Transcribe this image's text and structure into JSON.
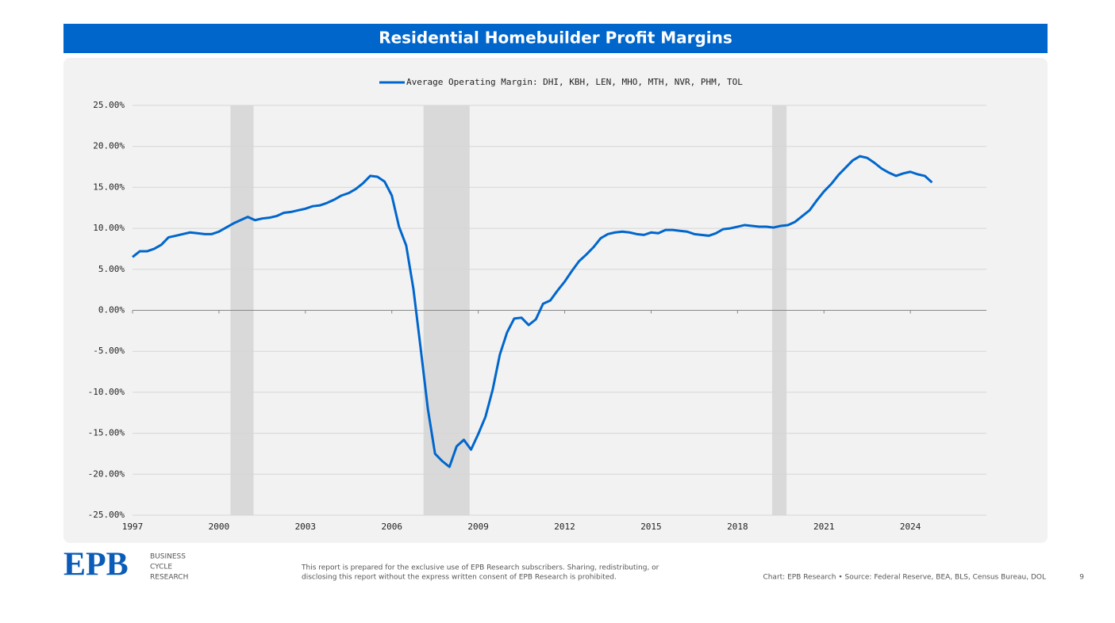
{
  "chart_data": {
    "type": "line",
    "title": "Residential Homebuilder Profit Margins",
    "legend": "top",
    "grid": true,
    "xlim": [
      1997,
      2026.64
    ],
    "ylim": [
      -25,
      25
    ],
    "xticks": [
      1997,
      2000,
      2003,
      2006,
      2009,
      2012,
      2015,
      2018,
      2021,
      2024
    ],
    "yticks": [
      {
        "value": 25,
        "label": "25.00%"
      },
      {
        "value": 20,
        "label": "20.00%"
      },
      {
        "value": 15,
        "label": "15.00%"
      },
      {
        "value": 10,
        "label": "10.00%"
      },
      {
        "value": 5,
        "label": "5.00%"
      },
      {
        "value": 0,
        "label": "0.00%"
      },
      {
        "value": -5,
        "label": "-5.00%"
      },
      {
        "value": -10,
        "label": "-10.00%"
      },
      {
        "value": -15,
        "label": "-15.00%"
      },
      {
        "value": -20,
        "label": "-20.00%"
      },
      {
        "value": -25,
        "label": "-25.00%"
      }
    ],
    "shaded_periods": [
      {
        "start": 2000.4,
        "end": 2001.2
      },
      {
        "start": 2007.1,
        "end": 2008.7
      },
      {
        "start": 2019.2,
        "end": 2019.7
      }
    ],
    "shade_color": "#d9d9d9",
    "x": [
      1997,
      1997.25,
      1997.5,
      1997.75,
      1998,
      1998.25,
      1998.5,
      1998.75,
      1999,
      1999.25,
      1999.5,
      1999.75,
      2000,
      2000.25,
      2000.5,
      2000.75,
      2001,
      2001.25,
      2001.5,
      2001.75,
      2002,
      2002.25,
      2002.5,
      2002.75,
      2003,
      2003.25,
      2003.5,
      2003.75,
      2004,
      2004.25,
      2004.5,
      2004.75,
      2005,
      2005.25,
      2005.5,
      2005.75,
      2006,
      2006.25,
      2006.5,
      2006.75,
      2007,
      2007.25,
      2007.5,
      2007.75,
      2008,
      2008.25,
      2008.5,
      2008.75,
      2009,
      2009.25,
      2009.5,
      2009.75,
      2010,
      2010.25,
      2010.5,
      2010.75,
      2011,
      2011.25,
      2011.5,
      2011.75,
      2012,
      2012.25,
      2012.5,
      2012.75,
      2013,
      2013.25,
      2013.5,
      2013.75,
      2014,
      2014.25,
      2014.5,
      2014.75,
      2015,
      2015.25,
      2015.5,
      2015.75,
      2016,
      2016.25,
      2016.5,
      2016.75,
      2017,
      2017.25,
      2017.5,
      2017.75,
      2018,
      2018.25,
      2018.5,
      2018.75,
      2019,
      2019.25,
      2019.5,
      2019.75,
      2020,
      2020.25,
      2020.5,
      2020.75,
      2021,
      2021.25,
      2021.5,
      2021.75,
      2022,
      2022.25,
      2022.5,
      2022.75,
      2023,
      2023.25,
      2023.5,
      2023.75,
      2024,
      2024.25,
      2024.5,
      2024.75
    ],
    "series": [
      {
        "name": "Average Operating Margin: DHI, KBH, LEN, MHO, MTH, NVR, PHM, TOL",
        "color": "#0066cc",
        "values": [
          6.5,
          7.2,
          7.2,
          7.5,
          8.0,
          8.9,
          9.1,
          9.3,
          9.5,
          9.4,
          9.3,
          9.3,
          9.6,
          10.1,
          10.6,
          11.0,
          11.4,
          11.0,
          11.2,
          11.3,
          11.5,
          11.9,
          12.0,
          12.2,
          12.4,
          12.7,
          12.8,
          13.1,
          13.5,
          14.0,
          14.3,
          14.8,
          15.5,
          16.4,
          16.3,
          15.7,
          14.0,
          10.2,
          7.9,
          2.6,
          -4.6,
          -12.0,
          -17.5,
          -18.4,
          -19.1,
          -16.6,
          -15.8,
          -17.0,
          -15.1,
          -13.0,
          -9.7,
          -5.4,
          -2.7,
          -1.0,
          -0.9,
          -1.8,
          -1.1,
          0.8,
          1.2,
          2.4,
          3.5,
          4.8,
          6.0,
          6.8,
          7.7,
          8.8,
          9.3,
          9.5,
          9.6,
          9.5,
          9.3,
          9.2,
          9.5,
          9.4,
          9.8,
          9.8,
          9.7,
          9.6,
          9.3,
          9.2,
          9.1,
          9.4,
          9.9,
          10.0,
          10.2,
          10.4,
          10.3,
          10.2,
          10.2,
          10.1,
          10.3,
          10.4,
          10.8,
          11.5,
          12.2,
          13.4,
          14.5,
          15.4,
          16.5,
          17.4,
          18.3,
          18.8,
          18.6,
          18.0,
          17.3,
          16.8,
          16.4,
          16.7,
          16.9,
          16.6,
          16.4,
          15.6
        ]
      }
    ]
  },
  "footer": {
    "logo": "EPB",
    "logo_lines": [
      "BUSINESS",
      "CYCLE",
      "RESEARCH"
    ],
    "disclaimer": [
      "This report is prepared for the exclusive use of EPB Research subscribers. Sharing, redistributing, or",
      "disclosing this report without the express written consent of EPB Research is prohibited."
    ],
    "source": "Chart: EPB Research  •  Source: Federal Reserve, BEA, BLS, Census Bureau, DOL",
    "page": "9"
  }
}
